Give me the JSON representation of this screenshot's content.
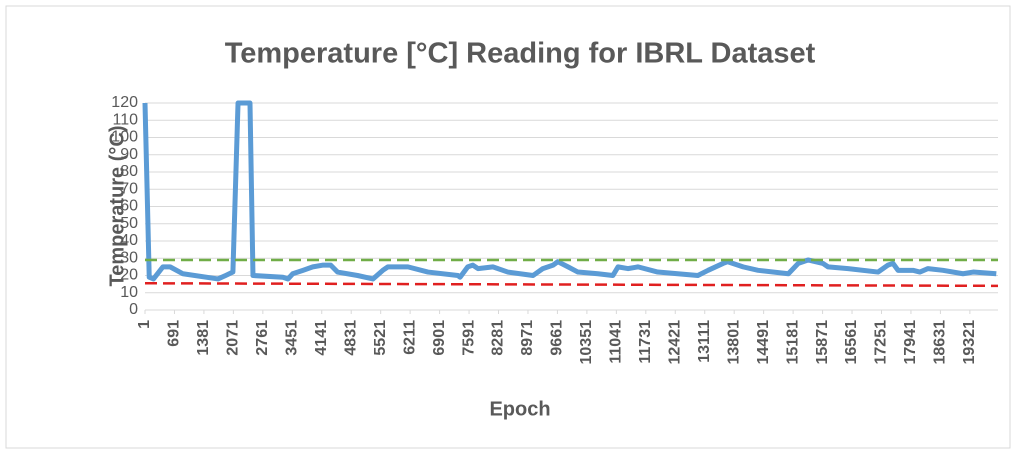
{
  "chart_data": {
    "type": "line",
    "title": "Temperature [°C] Reading for IBRL Dataset",
    "xlabel": "Epoch",
    "ylabel": "Temperature (°C)",
    "series": [
      {
        "color": "#5b9bd5",
        "x": [
          1,
          100,
          200,
          420,
          590,
          890,
          1710,
          1890,
          2060,
          2180,
          2460,
          2530,
          3230,
          3350,
          3460,
          3700,
          3930,
          4160,
          4350,
          4510,
          4980,
          5340,
          5570,
          5690,
          6160,
          6630,
          7330,
          7380,
          7560,
          7680,
          7800,
          8150,
          8500,
          9090,
          9320,
          9560,
          9670,
          9910,
          10140,
          10610,
          10960,
          11080,
          11310,
          11550,
          12010,
          12950,
          13190,
          13540,
          13650,
          14010,
          14360,
          15070,
          15300,
          15530,
          15880,
          16000,
          16470,
          17170,
          17400,
          17520,
          17640,
          17990,
          18150,
          18340,
          18690,
          19160,
          19400,
          19940
        ],
        "values": [
          120,
          19,
          18,
          25,
          25,
          21,
          18,
          20,
          22,
          120,
          120,
          20,
          19,
          18,
          21,
          23,
          25,
          26,
          26,
          22,
          20,
          18,
          23,
          25,
          25,
          22,
          20,
          19,
          25,
          26,
          24,
          25,
          22,
          20,
          24,
          26,
          28,
          25,
          22,
          21,
          20,
          25,
          24,
          25,
          22,
          20,
          23,
          27,
          28,
          25,
          23,
          21,
          27,
          29,
          27,
          25,
          24,
          22,
          26,
          27,
          23,
          23,
          22,
          24,
          23,
          21,
          22,
          21
        ]
      },
      {
        "color": "#70ad47",
        "dash": true,
        "x": [
          1,
          19980
        ],
        "values": [
          29,
          29
        ]
      },
      {
        "color": "#e02020",
        "dash": true,
        "x": [
          1,
          19980
        ],
        "values": [
          15.5,
          14
        ]
      }
    ],
    "xlim": [
      1,
      19980
    ],
    "xticks": [
      1,
      691,
      1381,
      2071,
      2761,
      3451,
      4141,
      4831,
      5521,
      6211,
      6901,
      7591,
      8281,
      8971,
      9661,
      10351,
      11041,
      11731,
      12421,
      13111,
      13801,
      14491,
      15181,
      15871,
      16561,
      17251,
      17941,
      18631,
      19321
    ],
    "ylim": [
      0,
      120
    ],
    "yticks": [
      0,
      10,
      20,
      30,
      40,
      50,
      60,
      70,
      80,
      90,
      100,
      110,
      120
    ],
    "grid": true
  }
}
